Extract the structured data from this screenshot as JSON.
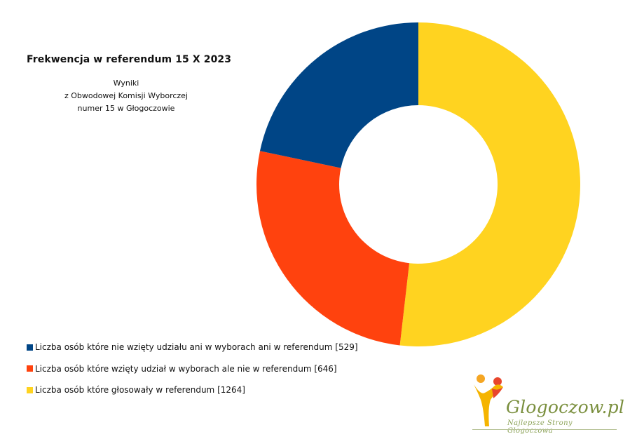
{
  "chart_data": {
    "type": "donut",
    "title": "Frekwencja w referendum 15 X 2023",
    "subtitle_lines": [
      "Wyniki",
      "z Obwodowej Komisji Wyborczej",
      "numer 15 w Głogoczowie"
    ],
    "series": [
      {
        "name": "Liczba osób które nie wzięty udziału ani w wyborach ani w referendum [529]",
        "value": 529,
        "color": "#004586"
      },
      {
        "name": "Liczba osób które wzięty udział w wyborach ale nie w referendum [646]",
        "value": 646,
        "color": "#ff420e"
      },
      {
        "name": "Liczba osób które głosowały w referendum [1264]",
        "value": 1264,
        "color": "#ffd320"
      }
    ],
    "legend_position": "bottom-left"
  },
  "logo": {
    "name": "Glogoczow.pl",
    "tagline": "Najlepsze Strony Głogoczowa"
  }
}
